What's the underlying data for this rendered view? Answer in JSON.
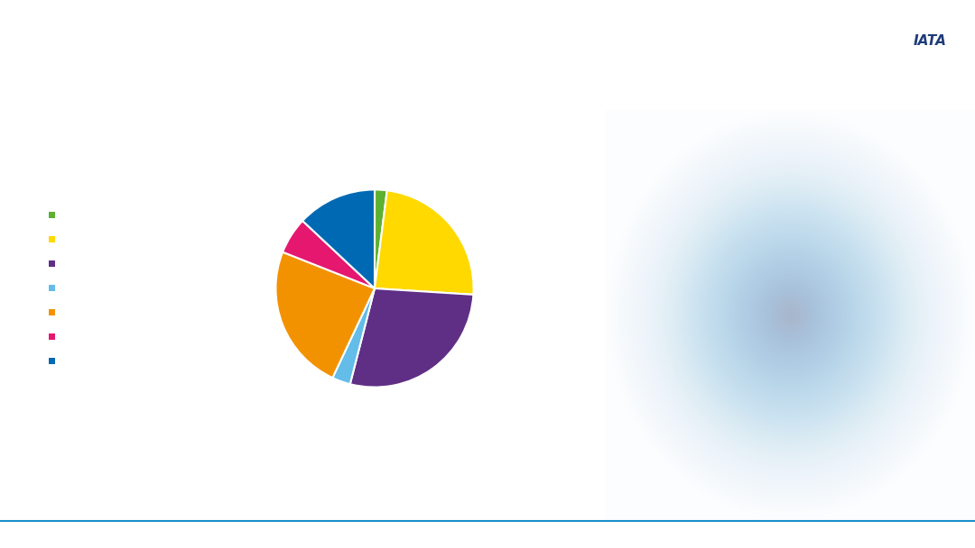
{
  "chart_data": {
    "type": "pie",
    "categories": [
      null,
      null,
      null,
      null,
      null,
      null,
      null
    ],
    "values": [
      2,
      24,
      28,
      3,
      24,
      6,
      13
    ],
    "colors": [
      "#5db130",
      "#ffd900",
      "#5f2f86",
      "#64bce9",
      "#f39200",
      "#e5176f",
      "#0069b4"
    ]
  },
  "logo": "IATA"
}
